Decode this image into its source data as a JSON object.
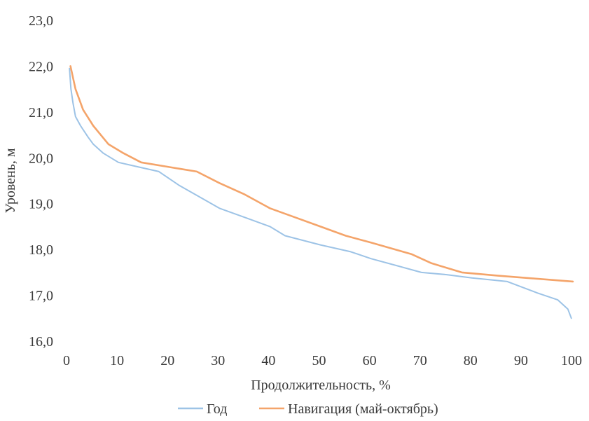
{
  "chart_data": {
    "type": "line",
    "xlabel": "Продолжительность, %",
    "ylabel": "Уровень, м",
    "xlim": [
      0,
      100
    ],
    "ylim": [
      16.0,
      23.0
    ],
    "x_ticks": [
      "0",
      "10",
      "20",
      "30",
      "40",
      "50",
      "60",
      "70",
      "80",
      "90",
      "100"
    ],
    "y_ticks": [
      "16,0",
      "17,0",
      "18,0",
      "19,0",
      "20,0",
      "21,0",
      "22,0",
      "23,0"
    ],
    "grid": false,
    "legend_position": "bottom",
    "series": [
      {
        "name": "Год",
        "color": "#9DC3E6",
        "x": [
          0.3,
          0.6,
          1.0,
          1.5,
          2.5,
          4,
          5,
          7,
          10,
          14,
          18,
          22,
          26,
          30,
          35,
          40,
          43,
          50,
          56,
          60,
          65,
          70,
          75,
          80,
          87,
          93,
          97,
          99,
          99.7
        ],
        "y": [
          21.95,
          21.5,
          21.2,
          20.9,
          20.7,
          20.45,
          20.3,
          20.1,
          19.9,
          19.8,
          19.7,
          19.4,
          19.15,
          18.9,
          18.7,
          18.5,
          18.3,
          18.1,
          17.95,
          17.8,
          17.65,
          17.5,
          17.45,
          17.38,
          17.3,
          17.05,
          16.9,
          16.7,
          16.5
        ]
      },
      {
        "name": "Навигация (май-октябрь)",
        "color": "#F4A46A",
        "x": [
          0.5,
          1.5,
          3,
          5,
          8,
          11,
          14.5,
          20,
          25.5,
          30,
          35,
          40,
          45,
          50,
          55,
          60,
          68,
          72,
          78,
          85,
          92,
          100
        ],
        "y": [
          22.0,
          21.5,
          21.05,
          20.7,
          20.3,
          20.1,
          19.9,
          19.8,
          19.7,
          19.45,
          19.2,
          18.9,
          18.7,
          18.5,
          18.3,
          18.15,
          17.9,
          17.7,
          17.5,
          17.43,
          17.37,
          17.3
        ]
      }
    ]
  }
}
